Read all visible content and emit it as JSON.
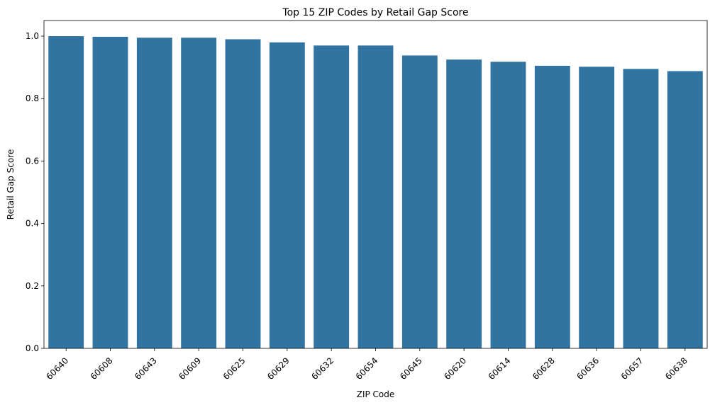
{
  "chart_data": {
    "type": "bar",
    "title": "Top 15 ZIP Codes by Retail Gap Score",
    "xlabel": "ZIP Code",
    "ylabel": "Retail Gap Score",
    "categories": [
      "60640",
      "60608",
      "60643",
      "60609",
      "60625",
      "60629",
      "60632",
      "60654",
      "60645",
      "60620",
      "60614",
      "60628",
      "60636",
      "60657",
      "60638"
    ],
    "values": [
      1.0,
      0.998,
      0.995,
      0.995,
      0.99,
      0.98,
      0.97,
      0.97,
      0.938,
      0.925,
      0.918,
      0.905,
      0.902,
      0.895,
      0.888
    ],
    "ylim": [
      0,
      1.05
    ],
    "yticks": [
      0.0,
      0.2,
      0.4,
      0.6,
      0.8,
      1.0
    ],
    "ytick_labels": [
      "0.0",
      "0.2",
      "0.4",
      "0.6",
      "0.8",
      "1.0"
    ],
    "xtick_rotation": 45,
    "grid": false,
    "legend": "none",
    "bar_color": "#3274a1"
  }
}
